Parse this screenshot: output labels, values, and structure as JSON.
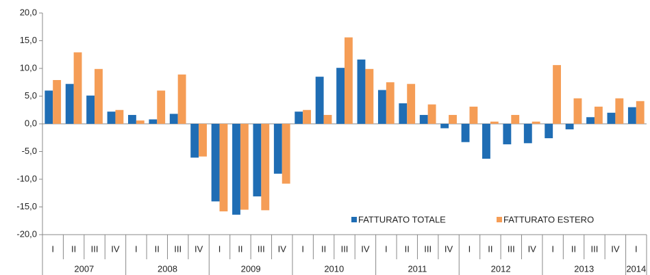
{
  "chart_data": {
    "type": "bar",
    "categories": [
      "I",
      "II",
      "III",
      "IV",
      "I",
      "II",
      "III",
      "IV",
      "I",
      "II",
      "III",
      "IV",
      "I",
      "II",
      "III",
      "IV",
      "I",
      "II",
      "III",
      "IV",
      "I",
      "II",
      "III",
      "IV",
      "I",
      "II",
      "III",
      "IV",
      "I"
    ],
    "years": [
      "2007",
      "2008",
      "2009",
      "2010",
      "2011",
      "2012",
      "2013",
      "2014"
    ],
    "series": [
      {
        "name": "FATTURATO TOTALE",
        "color": "#1f6db4",
        "values": [
          6.0,
          7.2,
          5.1,
          2.2,
          1.6,
          0.8,
          1.8,
          -6.1,
          -14.0,
          -16.4,
          -13.1,
          -9.0,
          2.2,
          8.5,
          10.1,
          11.6,
          6.1,
          3.7,
          1.6,
          -0.8,
          -3.3,
          -6.3,
          -3.7,
          -3.5,
          -2.6,
          -1.0,
          1.2,
          2.0,
          3.0
        ]
      },
      {
        "name": "FATTURATO ESTERO",
        "color": "#f59d56",
        "values": [
          7.9,
          12.9,
          9.9,
          2.5,
          0.6,
          6.0,
          8.9,
          -5.9,
          -15.8,
          -15.5,
          -15.6,
          -10.8,
          2.5,
          1.6,
          15.6,
          9.9,
          7.5,
          7.2,
          3.5,
          1.6,
          3.1,
          0.4,
          1.6,
          0.4,
          10.6,
          4.6,
          3.1,
          4.6,
          4.1
        ]
      }
    ],
    "ylim": [
      -20,
      20
    ],
    "yticks": [
      {
        "value": 20,
        "label": "20,0"
      },
      {
        "value": 15,
        "label": "15,0"
      },
      {
        "value": 10,
        "label": "10,0"
      },
      {
        "value": 5,
        "label": "5,0"
      },
      {
        "value": 0,
        "label": "0,0"
      },
      {
        "value": -5,
        "label": "-5,0"
      },
      {
        "value": -10,
        "label": "-10,0"
      },
      {
        "value": -15,
        "label": "-15,0"
      },
      {
        "value": -20,
        "label": "-20,0"
      }
    ],
    "legend": "bottom-right",
    "grid": false
  }
}
